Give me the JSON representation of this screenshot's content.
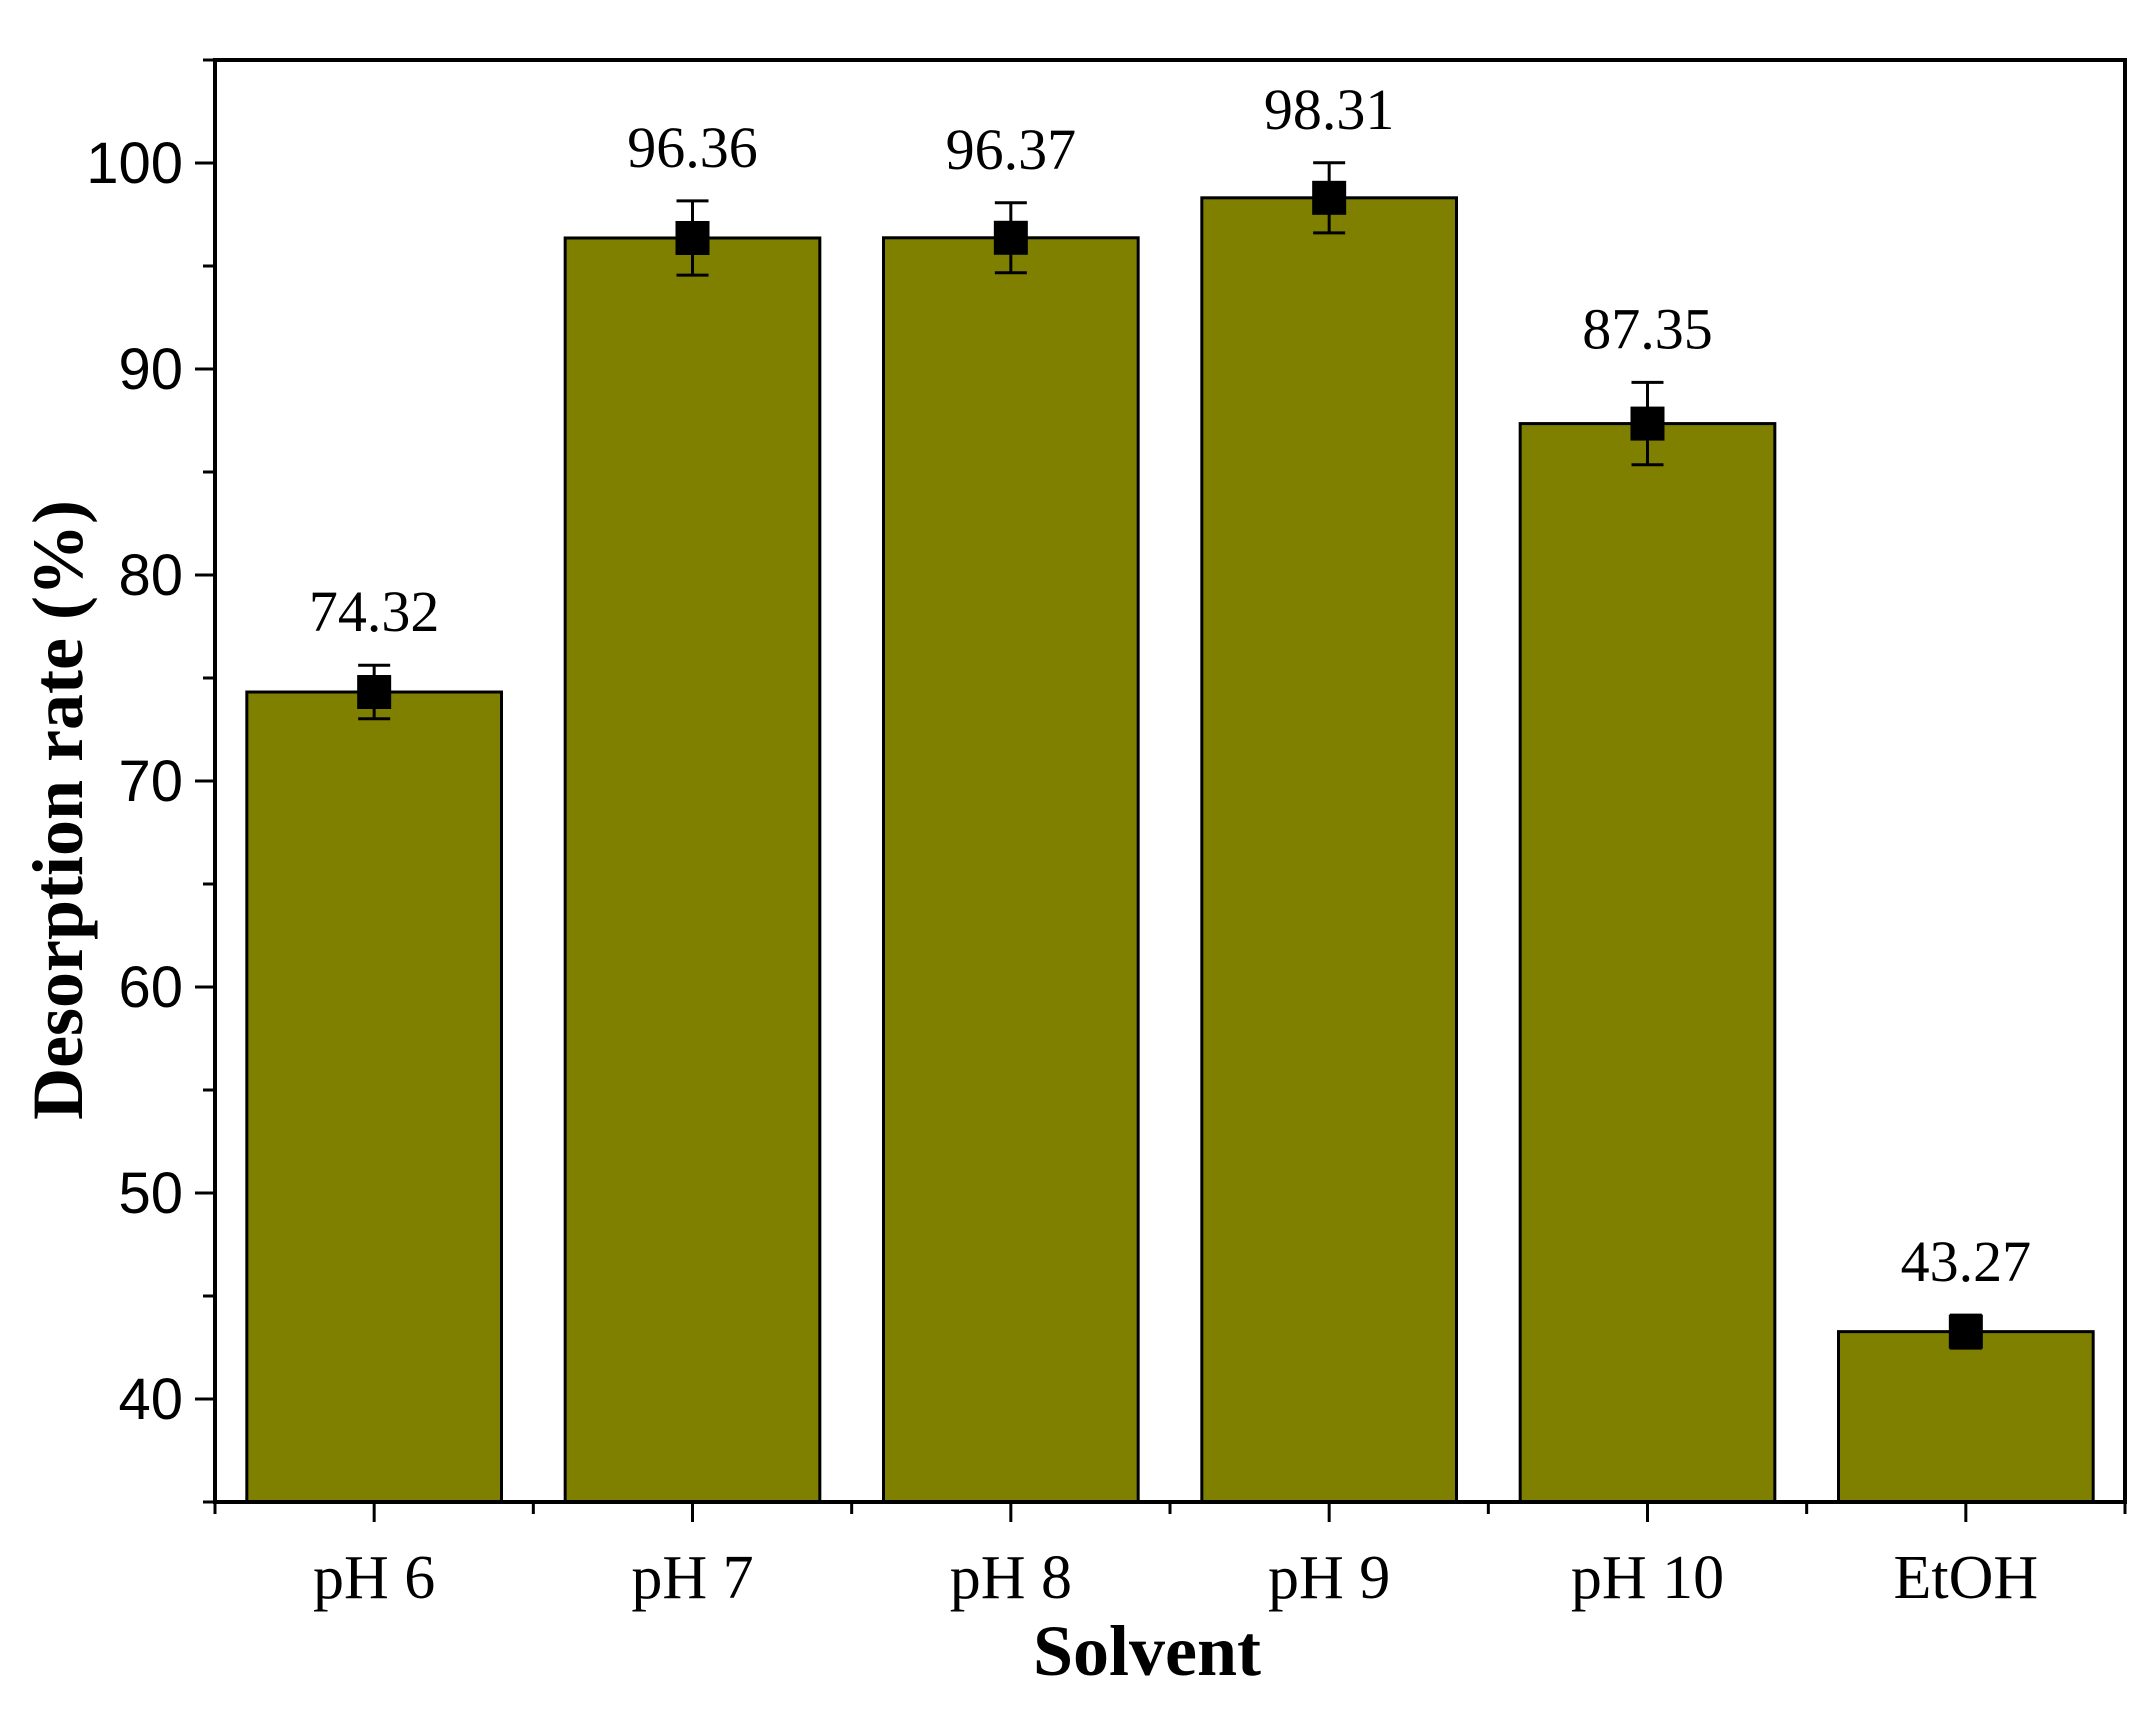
{
  "chart_data": {
    "type": "bar",
    "title": "",
    "xlabel": "Solvent",
    "ylabel": "Desorption rate (%)",
    "categories": [
      "pH 6",
      "pH 7",
      "pH 8",
      "pH 9",
      "pH 10",
      "EtOH"
    ],
    "values": [
      74.32,
      96.36,
      96.37,
      98.31,
      87.35,
      43.27
    ],
    "value_labels": [
      "74.32",
      "96.36",
      "96.37",
      "98.31",
      "87.35",
      "43.27"
    ],
    "errors": [
      1.3,
      1.8,
      1.7,
      1.7,
      2.0,
      0.8
    ],
    "ylim": [
      35,
      105
    ],
    "yticks": [
      40,
      50,
      60,
      70,
      80,
      90,
      100
    ],
    "ytick_labels": [
      "40",
      "50",
      "60",
      "70",
      "80",
      "90",
      "100"
    ],
    "bar_color": "#808000",
    "marker": "square",
    "marker_color": "#000000",
    "grid": false,
    "legend": "none"
  }
}
